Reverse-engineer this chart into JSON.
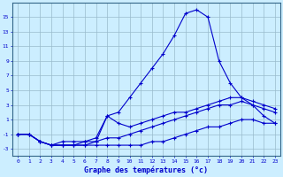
{
  "xlabel": "Graphe des températures (°c)",
  "background_color": "#cceeff",
  "grid_color": "#99bbcc",
  "line_color": "#0000cc",
  "xlim": [
    -0.5,
    23.5
  ],
  "ylim": [
    -4,
    17
  ],
  "xticks": [
    0,
    1,
    2,
    3,
    4,
    5,
    6,
    7,
    8,
    9,
    10,
    11,
    12,
    13,
    14,
    15,
    16,
    17,
    18,
    19,
    20,
    21,
    22,
    23
  ],
  "yticks": [
    -3,
    -1,
    1,
    3,
    5,
    7,
    9,
    11,
    13,
    15
  ],
  "line1_x": [
    0,
    1,
    2,
    3,
    4,
    5,
    6,
    7,
    8,
    9,
    10,
    11,
    12,
    13,
    14,
    15,
    16,
    17,
    18,
    19,
    20,
    21,
    22,
    23
  ],
  "line1_y": [
    -1,
    -1,
    -2,
    -2.5,
    -2.5,
    -2.5,
    -2.5,
    -2.5,
    -2.5,
    -2.5,
    -2.5,
    -2.5,
    -2,
    -2,
    -1.5,
    -1,
    -0.5,
    0,
    0,
    0.5,
    1,
    1,
    0.5,
    0.5
  ],
  "line2_x": [
    0,
    1,
    2,
    3,
    4,
    5,
    6,
    7,
    8,
    9,
    10,
    11,
    12,
    13,
    14,
    15,
    16,
    17,
    18,
    19,
    20,
    21,
    22,
    23
  ],
  "line2_y": [
    -1,
    -1,
    -2,
    -2.5,
    -2.5,
    -2.5,
    -2.5,
    -2,
    -1.5,
    -1.5,
    -1,
    -0.5,
    0,
    0.5,
    1,
    1.5,
    2,
    2.5,
    3,
    3,
    3.5,
    3,
    2.5,
    2
  ],
  "line3_x": [
    0,
    1,
    2,
    3,
    4,
    5,
    6,
    7,
    8,
    9,
    10,
    11,
    12,
    13,
    14,
    15,
    16,
    17,
    18,
    19,
    20,
    21,
    22,
    23
  ],
  "line3_y": [
    -1,
    -1,
    -2,
    -2.5,
    -2.5,
    -2.5,
    -2,
    -1.5,
    1.5,
    0.5,
    0,
    0.5,
    1,
    1.5,
    2,
    2,
    2.5,
    3,
    3.5,
    4,
    4,
    3.5,
    3,
    2.5
  ],
  "line4_x": [
    0,
    1,
    2,
    3,
    4,
    5,
    6,
    7,
    8,
    9,
    10,
    11,
    12,
    13,
    14,
    15,
    16,
    17,
    18,
    19,
    20,
    21,
    22,
    23
  ],
  "line4_y": [
    -1,
    -1,
    -2,
    -2.5,
    -2,
    -2,
    -2,
    -2,
    1.5,
    2,
    4,
    6,
    8,
    10,
    12.5,
    15.5,
    16,
    15,
    9,
    6,
    4,
    3,
    1.5,
    0.5
  ],
  "marker": "+"
}
